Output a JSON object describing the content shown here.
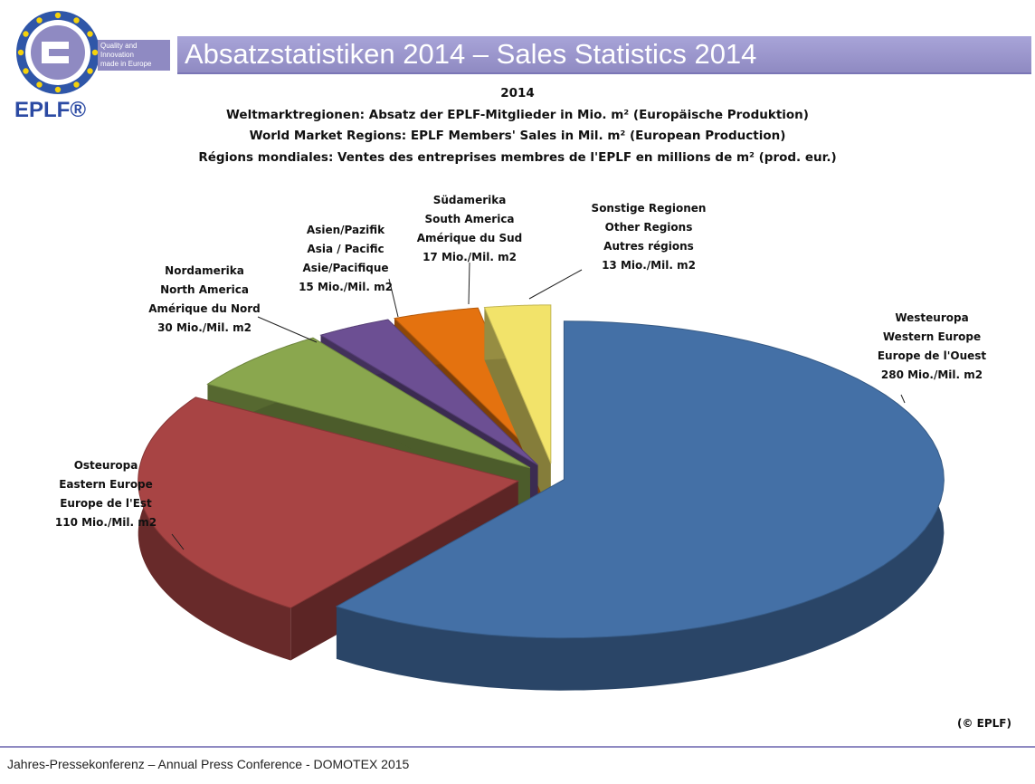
{
  "header": {
    "title": "Absatzstatistiken 2014 – Sales Statistics 2014",
    "logo_caption": [
      "Quality and",
      "Innovation",
      "made in Europe"
    ],
    "logo_word": "EPLF®"
  },
  "subtitles": [
    "2014",
    "Weltmarktregionen: Absatz der EPLF-Mitglieder in Mio. m² (Europäische Produktion)",
    "World Market Regions: EPLF Members' Sales in Mil. m² (European Production)",
    "Régions mondiales: Ventes des entreprises membres de l'EPLF en millions de m² (prod. eur.)"
  ],
  "chart_data": {
    "type": "pie",
    "title": "2014",
    "categories": [
      "Westeuropa / Western Europe / Europe de l'Ouest",
      "Osteuropa / Eastern Europe / Europe de l'Est",
      "Nordamerika / North America / Amérique du Nord",
      "Asien/Pazifik / Asia / Pacific / Asie/Pacifique",
      "Südamerika / South America / Amérique du Sud",
      "Sonstige Regionen / Other Regions / Autres régions"
    ],
    "values": [
      280,
      110,
      30,
      15,
      17,
      13
    ],
    "colors": [
      "#4470a6",
      "#a84444",
      "#8aa74e",
      "#6c4f93",
      "#e4720f",
      "#f2e36a"
    ],
    "labels": [
      [
        "Westeuropa",
        "Western Europe",
        "Europe de l'Ouest",
        "280 Mio./Mil. m2"
      ],
      [
        "Osteuropa",
        "Eastern Europe",
        "Europe de l'Est",
        "110 Mio./Mil. m2"
      ],
      [
        "Nordamerika",
        "North America",
        "Amérique du Nord",
        "30 Mio./Mil. m2"
      ],
      [
        "Asien/Pazifik",
        "Asia / Pacific",
        "Asie/Pacifique",
        "15 Mio./Mil. m2"
      ],
      [
        "Südamerika",
        "South America",
        "Amérique du Sud",
        "17 Mio./Mil. m2"
      ],
      [
        "Sonstige Regionen",
        "Other Regions",
        "Autres régions",
        "13 Mio./Mil. m2"
      ]
    ],
    "legend": "none"
  },
  "copyright": "(© EPLF)",
  "footer": "Jahres-Pressekonferenz – Annual Press Conference - DOMOTEX 2015"
}
